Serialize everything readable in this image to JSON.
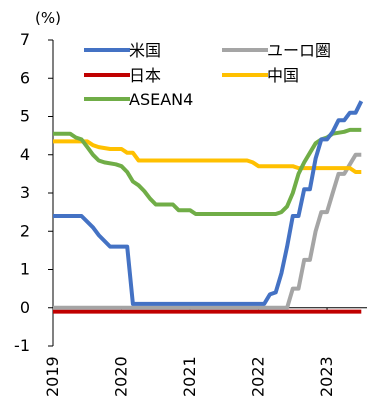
{
  "chart_data": {
    "type": "line",
    "unit_label": "(%)",
    "x_ticks": [
      "2019",
      "2020",
      "2021",
      "2022",
      "2023"
    ],
    "ylim": [
      -1,
      7
    ],
    "y_ticks": [
      -1,
      0,
      1,
      2,
      3,
      4,
      5,
      6,
      7
    ],
    "legend_position": "top",
    "series": [
      {
        "name": "米国",
        "color": "#4472C4",
        "points": [
          [
            "2019-01",
            2.4
          ],
          [
            "2019-06",
            2.4
          ],
          [
            "2019-08",
            2.1
          ],
          [
            "2019-09",
            1.9
          ],
          [
            "2019-11",
            1.6
          ],
          [
            "2020-02",
            1.6
          ],
          [
            "2020-03",
            0.1
          ],
          [
            "2022-02",
            0.1
          ],
          [
            "2022-03",
            0.35
          ],
          [
            "2022-04",
            0.4
          ],
          [
            "2022-05",
            0.9
          ],
          [
            "2022-06",
            1.6
          ],
          [
            "2022-07",
            2.4
          ],
          [
            "2022-08",
            2.4
          ],
          [
            "2022-09",
            3.1
          ],
          [
            "2022-10",
            3.1
          ],
          [
            "2022-11",
            3.9
          ],
          [
            "2022-12",
            4.4
          ],
          [
            "2023-01",
            4.4
          ],
          [
            "2023-02",
            4.6
          ],
          [
            "2023-03",
            4.9
          ],
          [
            "2023-04",
            4.9
          ],
          [
            "2023-05",
            5.1
          ],
          [
            "2023-06",
            5.1
          ],
          [
            "2023-07",
            5.4
          ]
        ]
      },
      {
        "name": "ユーロ圏",
        "color": "#A5A5A5",
        "points": [
          [
            "2019-01",
            0.0
          ],
          [
            "2022-06",
            0.0
          ],
          [
            "2022-07",
            0.5
          ],
          [
            "2022-08",
            0.5
          ],
          [
            "2022-09",
            1.25
          ],
          [
            "2022-10",
            1.25
          ],
          [
            "2022-11",
            2.0
          ],
          [
            "2022-12",
            2.5
          ],
          [
            "2023-01",
            2.5
          ],
          [
            "2023-02",
            3.0
          ],
          [
            "2023-03",
            3.5
          ],
          [
            "2023-04",
            3.5
          ],
          [
            "2023-05",
            3.75
          ],
          [
            "2023-06",
            4.0
          ],
          [
            "2023-07",
            4.0
          ]
        ]
      },
      {
        "name": "日本",
        "color": "#C00000",
        "points": [
          [
            "2019-01",
            -0.1
          ],
          [
            "2023-07",
            -0.1
          ]
        ]
      },
      {
        "name": "中国",
        "color": "#FFC000",
        "points": [
          [
            "2019-01",
            4.35
          ],
          [
            "2019-07",
            4.35
          ],
          [
            "2019-08",
            4.25
          ],
          [
            "2019-09",
            4.2
          ],
          [
            "2019-11",
            4.15
          ],
          [
            "2020-01",
            4.15
          ],
          [
            "2020-02",
            4.05
          ],
          [
            "2020-03",
            4.05
          ],
          [
            "2020-04",
            3.85
          ],
          [
            "2021-11",
            3.85
          ],
          [
            "2021-12",
            3.8
          ],
          [
            "2022-01",
            3.7
          ],
          [
            "2022-07",
            3.7
          ],
          [
            "2022-08",
            3.65
          ],
          [
            "2023-05",
            3.65
          ],
          [
            "2023-06",
            3.55
          ],
          [
            "2023-07",
            3.55
          ]
        ]
      },
      {
        "name": "ASEAN4",
        "color": "#70AD47",
        "points": [
          [
            "2019-01",
            4.55
          ],
          [
            "2019-04",
            4.55
          ],
          [
            "2019-05",
            4.45
          ],
          [
            "2019-06",
            4.4
          ],
          [
            "2019-07",
            4.2
          ],
          [
            "2019-08",
            4.0
          ],
          [
            "2019-09",
            3.85
          ],
          [
            "2019-10",
            3.8
          ],
          [
            "2019-12",
            3.75
          ],
          [
            "2020-01",
            3.7
          ],
          [
            "2020-02",
            3.55
          ],
          [
            "2020-03",
            3.3
          ],
          [
            "2020-04",
            3.2
          ],
          [
            "2020-05",
            3.05
          ],
          [
            "2020-06",
            2.85
          ],
          [
            "2020-07",
            2.7
          ],
          [
            "2020-10",
            2.7
          ],
          [
            "2020-11",
            2.55
          ],
          [
            "2021-01",
            2.55
          ],
          [
            "2021-02",
            2.45
          ],
          [
            "2022-03",
            2.45
          ],
          [
            "2022-04",
            2.45
          ],
          [
            "2022-05",
            2.5
          ],
          [
            "2022-06",
            2.65
          ],
          [
            "2022-07",
            3.0
          ],
          [
            "2022-08",
            3.5
          ],
          [
            "2022-09",
            3.8
          ],
          [
            "2022-10",
            4.05
          ],
          [
            "2022-11",
            4.3
          ],
          [
            "2022-12",
            4.4
          ],
          [
            "2023-01",
            4.45
          ],
          [
            "2023-02",
            4.55
          ],
          [
            "2023-04",
            4.6
          ],
          [
            "2023-05",
            4.65
          ],
          [
            "2023-07",
            4.65
          ]
        ]
      }
    ]
  }
}
